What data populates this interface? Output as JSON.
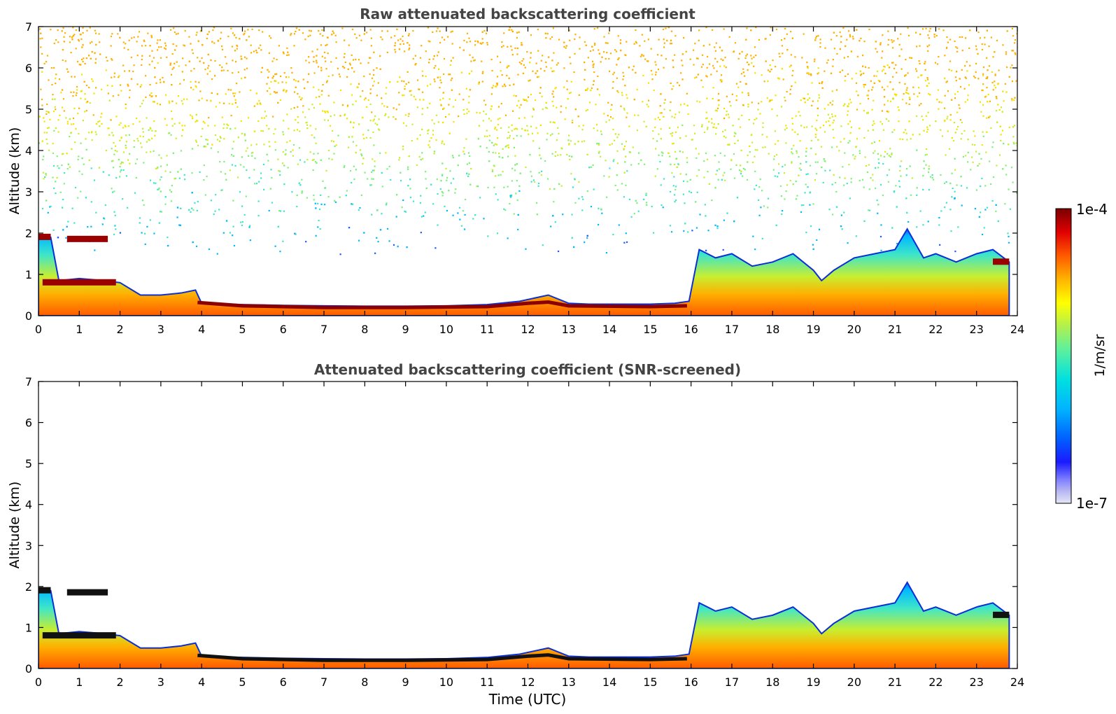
{
  "chart_data": [
    {
      "type": "heatmap",
      "title": "Raw attenuated backscattering coefficient",
      "xlabel": "",
      "ylabel": "Altitude (km)",
      "xlim": [
        0,
        24
      ],
      "ylim": [
        0,
        7
      ],
      "x_ticks": [
        "0",
        "1",
        "2",
        "3",
        "4",
        "5",
        "6",
        "7",
        "8",
        "9",
        "10",
        "11",
        "12",
        "13",
        "14",
        "15",
        "16",
        "17",
        "18",
        "19",
        "20",
        "21",
        "22",
        "23",
        "24"
      ],
      "y_ticks": [
        "0",
        "1",
        "2",
        "3",
        "4",
        "5",
        "6",
        "7"
      ],
      "screened": false,
      "layer_top_km": {
        "time_utc": [
          0,
          0.3,
          0.5,
          1.0,
          1.6,
          2.0,
          2.5,
          3.0,
          3.5,
          3.85,
          4.0,
          5,
          6,
          7,
          8,
          9,
          10,
          11,
          11.8,
          12.5,
          13.0,
          13.5,
          14,
          15,
          15.6,
          15.95,
          16.2,
          16.6,
          17.0,
          17.5,
          18.0,
          18.5,
          19.0,
          19.2,
          19.5,
          20.0,
          20.5,
          21.0,
          21.3,
          21.7,
          22.0,
          22.5,
          23.0,
          23.4,
          23.8
        ],
        "km": [
          1.9,
          1.9,
          0.85,
          0.9,
          0.85,
          0.8,
          0.5,
          0.5,
          0.55,
          0.62,
          0.3,
          0.27,
          0.25,
          0.24,
          0.23,
          0.23,
          0.24,
          0.27,
          0.35,
          0.5,
          0.3,
          0.28,
          0.28,
          0.28,
          0.3,
          0.35,
          1.6,
          1.4,
          1.5,
          1.2,
          1.3,
          1.5,
          1.1,
          0.85,
          1.1,
          1.4,
          1.5,
          1.6,
          2.1,
          1.4,
          1.5,
          1.3,
          1.5,
          1.6,
          1.3
        ]
      },
      "features": {
        "cloud_layer_km": [
          {
            "from_utc": 0.0,
            "to_utc": 0.3,
            "km": 1.9
          },
          {
            "from_utc": 0.7,
            "to_utc": 1.7,
            "km": 1.85
          },
          {
            "from_utc": 0.1,
            "to_utc": 1.9,
            "km": 0.8
          },
          {
            "from_utc": 23.4,
            "to_utc": 23.8,
            "km": 1.3
          }
        ]
      }
    },
    {
      "type": "heatmap",
      "title": "Attenuated backscattering coefficient (SNR-screened)",
      "xlabel": "Time (UTC)",
      "ylabel": "Altitude (km)",
      "xlim": [
        0,
        24
      ],
      "ylim": [
        0,
        7
      ],
      "x_ticks": [
        "0",
        "1",
        "2",
        "3",
        "4",
        "5",
        "6",
        "7",
        "8",
        "9",
        "10",
        "11",
        "12",
        "13",
        "14",
        "15",
        "16",
        "17",
        "18",
        "19",
        "20",
        "21",
        "22",
        "23",
        "24"
      ],
      "y_ticks": [
        "0",
        "1",
        "2",
        "3",
        "4",
        "5",
        "6",
        "7"
      ],
      "screened": true
    }
  ],
  "colorbar": {
    "label": "1/m/sr",
    "max_label": "1e-4",
    "min_label": "1e-7",
    "scale": "log",
    "colors": [
      "#e6e6f7",
      "#c7c7f2",
      "#a6a6f0",
      "#8080ff",
      "#5050ff",
      "#0000ff",
      "#0040ff",
      "#0080ff",
      "#00c0ff",
      "#00e5e5",
      "#40f0c0",
      "#80f080",
      "#c0f040",
      "#ffff00",
      "#ffc000",
      "#ff8000",
      "#ff4000",
      "#ff0000",
      "#c00000",
      "#800000"
    ]
  }
}
